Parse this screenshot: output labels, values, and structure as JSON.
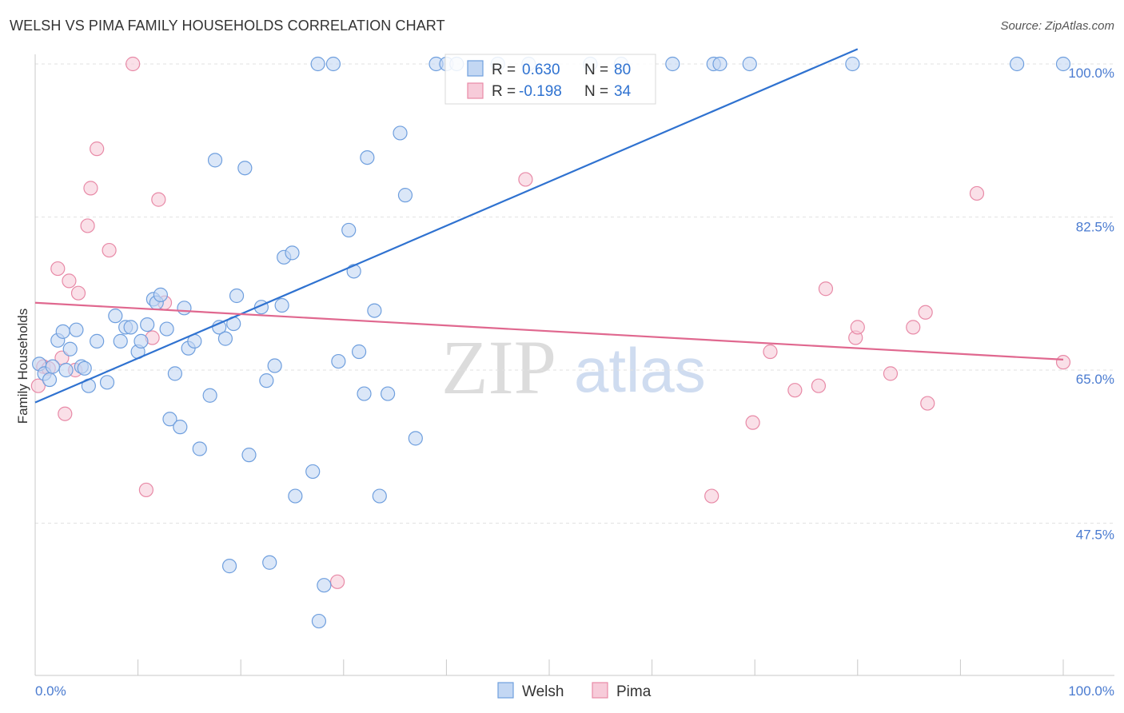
{
  "title": "WELSH VS PIMA FAMILY HOUSEHOLDS CORRELATION CHART",
  "source": "Source: ZipAtlas.com",
  "watermark": {
    "zip": "ZIP",
    "atlas": "atlas"
  },
  "chart_data": {
    "type": "scatter",
    "title": "WELSH VS PIMA FAMILY HOUSEHOLDS CORRELATION CHART",
    "xlabel": "",
    "ylabel": "Family Households",
    "xlim": [
      0,
      100
    ],
    "ylim": [
      31.4,
      101.7
    ],
    "x_tick_labels": [
      "0.0%",
      "100.0%"
    ],
    "y_ticks": [
      {
        "value": 100.0,
        "label": "100.0%"
      },
      {
        "value": 82.5,
        "label": "82.5%"
      },
      {
        "value": 65.0,
        "label": "65.0%"
      },
      {
        "value": 47.5,
        "label": "47.5%"
      }
    ],
    "legend": {
      "position": "top-center",
      "rows": [
        {
          "r_label": "R =",
          "r_value": "0.630",
          "n_label": "N =",
          "n_value": "80"
        },
        {
          "r_label": "R =",
          "r_value": "-0.198",
          "n_label": "N =",
          "n_value": "34"
        }
      ]
    },
    "bottom_legend": [
      "Welsh",
      "Pima"
    ],
    "series": [
      {
        "name": "Welsh",
        "color": "#6f9fde",
        "fill": "#c3d7f3",
        "trend": {
          "x": [
            0.0,
            80.0
          ],
          "y": [
            61.3,
            101.7
          ]
        },
        "points": [
          [
            0.4,
            65.7
          ],
          [
            0.9,
            64.6
          ],
          [
            1.4,
            63.9
          ],
          [
            1.7,
            65.4
          ],
          [
            2.2,
            68.4
          ],
          [
            2.7,
            69.4
          ],
          [
            3.0,
            65.0
          ],
          [
            3.4,
            67.4
          ],
          [
            4.0,
            69.6
          ],
          [
            4.5,
            65.4
          ],
          [
            4.8,
            65.2
          ],
          [
            5.2,
            63.2
          ],
          [
            6.0,
            68.3
          ],
          [
            7.0,
            63.6
          ],
          [
            7.8,
            71.2
          ],
          [
            8.3,
            68.3
          ],
          [
            8.8,
            69.9
          ],
          [
            9.3,
            69.9
          ],
          [
            10.0,
            67.1
          ],
          [
            10.3,
            68.3
          ],
          [
            10.9,
            70.2
          ],
          [
            11.5,
            73.1
          ],
          [
            11.8,
            72.7
          ],
          [
            12.2,
            73.6
          ],
          [
            12.8,
            69.7
          ],
          [
            13.1,
            59.4
          ],
          [
            13.6,
            64.6
          ],
          [
            14.1,
            58.5
          ],
          [
            14.5,
            72.1
          ],
          [
            14.9,
            67.5
          ],
          [
            15.5,
            68.3
          ],
          [
            16.0,
            56.0
          ],
          [
            17.0,
            62.1
          ],
          [
            17.5,
            89.0
          ],
          [
            17.9,
            69.9
          ],
          [
            18.5,
            68.6
          ],
          [
            18.9,
            42.6
          ],
          [
            19.3,
            70.3
          ],
          [
            19.6,
            73.5
          ],
          [
            20.4,
            88.1
          ],
          [
            20.8,
            55.3
          ],
          [
            22.0,
            72.2
          ],
          [
            22.8,
            43.0
          ],
          [
            23.3,
            65.5
          ],
          [
            22.5,
            63.8
          ],
          [
            24.0,
            72.4
          ],
          [
            24.2,
            77.9
          ],
          [
            25.0,
            78.4
          ],
          [
            25.3,
            50.6
          ],
          [
            27.0,
            53.4
          ],
          [
            27.5,
            100.0
          ],
          [
            27.6,
            36.3
          ],
          [
            28.1,
            40.4
          ],
          [
            29.0,
            100.0
          ],
          [
            29.5,
            66.0
          ],
          [
            30.5,
            81.0
          ],
          [
            31.0,
            76.3
          ],
          [
            31.5,
            67.1
          ],
          [
            32.0,
            62.3
          ],
          [
            32.3,
            89.3
          ],
          [
            33.0,
            71.8
          ],
          [
            33.5,
            50.6
          ],
          [
            34.3,
            62.3
          ],
          [
            35.5,
            92.1
          ],
          [
            36.0,
            85.0
          ],
          [
            37.0,
            57.2
          ],
          [
            39.0,
            100.0
          ],
          [
            40.0,
            100.0
          ],
          [
            41.0,
            100.0
          ],
          [
            45.0,
            100.0
          ],
          [
            48.0,
            100.0
          ],
          [
            54.0,
            100.0
          ],
          [
            57.0,
            100.0
          ],
          [
            62.0,
            100.0
          ],
          [
            66.0,
            100.0
          ],
          [
            66.6,
            100.0
          ],
          [
            69.5,
            100.0
          ],
          [
            79.5,
            100.0
          ],
          [
            95.5,
            100.0
          ],
          [
            100.0,
            100.0
          ]
        ]
      },
      {
        "name": "Pima",
        "color": "#e88aa7",
        "fill": "#f7cbd9",
        "trend": {
          "x": [
            0.0,
            100.0
          ],
          "y": [
            72.7,
            66.2
          ]
        },
        "points": [
          [
            0.3,
            63.2
          ],
          [
            0.8,
            65.4
          ],
          [
            1.3,
            65.2
          ],
          [
            2.2,
            76.6
          ],
          [
            2.6,
            66.4
          ],
          [
            2.9,
            60.0
          ],
          [
            3.3,
            75.2
          ],
          [
            3.9,
            65.0
          ],
          [
            4.2,
            73.8
          ],
          [
            5.1,
            81.5
          ],
          [
            5.4,
            85.8
          ],
          [
            6.0,
            90.3
          ],
          [
            7.2,
            78.7
          ],
          [
            9.5,
            100.0
          ],
          [
            10.8,
            51.3
          ],
          [
            11.4,
            68.7
          ],
          [
            12.0,
            84.5
          ],
          [
            12.6,
            72.7
          ],
          [
            29.4,
            40.8
          ],
          [
            47.7,
            86.8
          ],
          [
            65.8,
            50.6
          ],
          [
            69.8,
            59.0
          ],
          [
            71.5,
            67.1
          ],
          [
            73.9,
            62.7
          ],
          [
            76.2,
            63.2
          ],
          [
            76.9,
            74.3
          ],
          [
            79.8,
            68.7
          ],
          [
            80.0,
            69.9
          ],
          [
            83.2,
            64.6
          ],
          [
            85.4,
            69.9
          ],
          [
            86.6,
            71.6
          ],
          [
            86.8,
            61.2
          ],
          [
            91.6,
            85.2
          ],
          [
            100.0,
            65.9
          ]
        ]
      }
    ]
  }
}
